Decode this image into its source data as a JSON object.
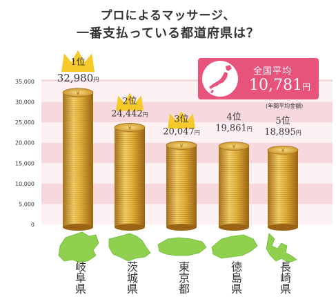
{
  "title_line1": "プロによるマッサージ、",
  "title_line2": "一番支払っている都道府県は？",
  "average": {
    "label": "全国平均",
    "value": "10,781",
    "unit": "円",
    "note": "(年間平均金額)"
  },
  "colors": {
    "band_pink": "#f7d9dd",
    "band_white": "#fdf1f3",
    "accent": "#e8537c",
    "gold": "#d9a52d",
    "gold_light": "#f3d06a",
    "crown": "#f6c92b",
    "map_green": "#8fd14f"
  },
  "icons": {
    "crown": "crown-icon",
    "japan_map": "japan-map-icon",
    "prefecture_shape": "prefecture-map-icon"
  },
  "chart_data": {
    "type": "bar",
    "title": "プロによるマッサージ、一番支払っている都道府県は？",
    "categories": [
      "岐阜県",
      "茨城県",
      "東京都",
      "徳島県",
      "長崎県"
    ],
    "values": [
      32980,
      24442,
      20047,
      19861,
      18895
    ],
    "value_labels": [
      "32,980",
      "24,442",
      "20,047",
      "19,861",
      "18,895"
    ],
    "ranks": [
      "1位",
      "2位",
      "3位",
      "4位",
      "5位"
    ],
    "value_unit": "円",
    "ylim": [
      0,
      35000
    ],
    "yticks": [
      0,
      5000,
      10000,
      15000,
      20000,
      25000,
      30000,
      35000
    ],
    "ytick_labels": [
      "0",
      "5,000",
      "10,000",
      "15,000",
      "20,000",
      "25,000",
      "30,000",
      "35,000"
    ],
    "grid": "alternating horizontal bands",
    "legend": "none",
    "crowned_ranks": 3
  }
}
